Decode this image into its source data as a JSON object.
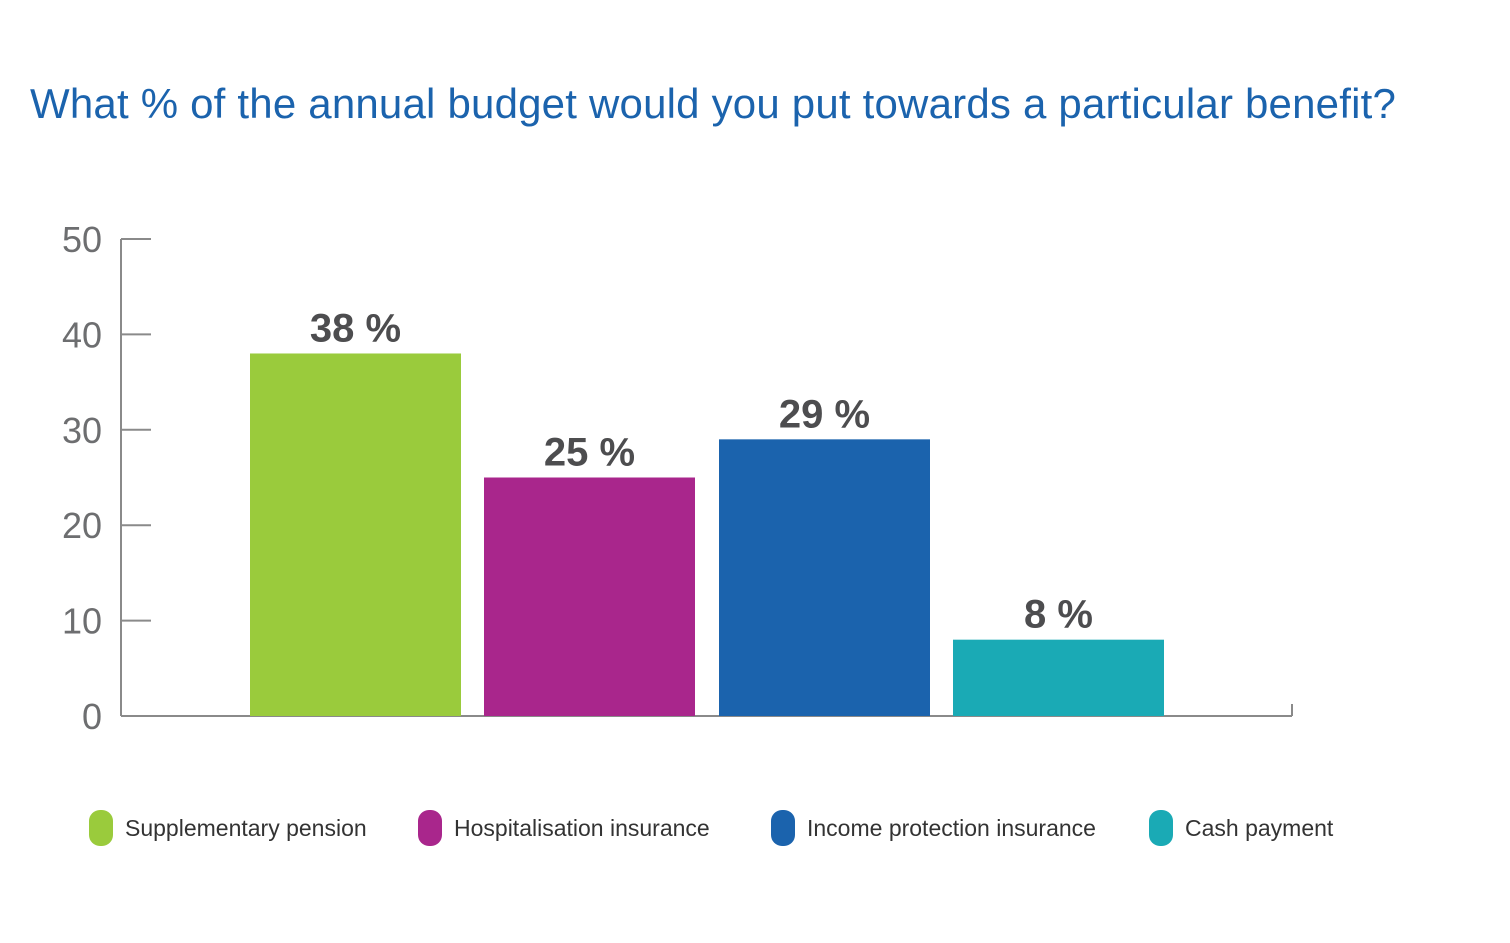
{
  "chart_data": {
    "type": "bar",
    "title": "What % of the annual budget would you put towards a particular benefit?",
    "categories": [
      "Supplementary pension",
      "Hospitalisation insurance",
      "Income protection insurance",
      "Cash payment"
    ],
    "values": [
      38,
      25,
      29,
      8
    ],
    "data_labels": [
      "38 %",
      "25 %",
      "29 %",
      "8 %"
    ],
    "colors": [
      "#9acb3c",
      "#a9268c",
      "#1b63ad",
      "#1aaab5"
    ],
    "ylim": [
      0,
      50
    ],
    "yticks": [
      0,
      10,
      20,
      30,
      40,
      50
    ],
    "xlabel": "",
    "ylabel": "",
    "grid": false,
    "legend_position": "bottom",
    "axis_color": "#8a8a8a"
  }
}
